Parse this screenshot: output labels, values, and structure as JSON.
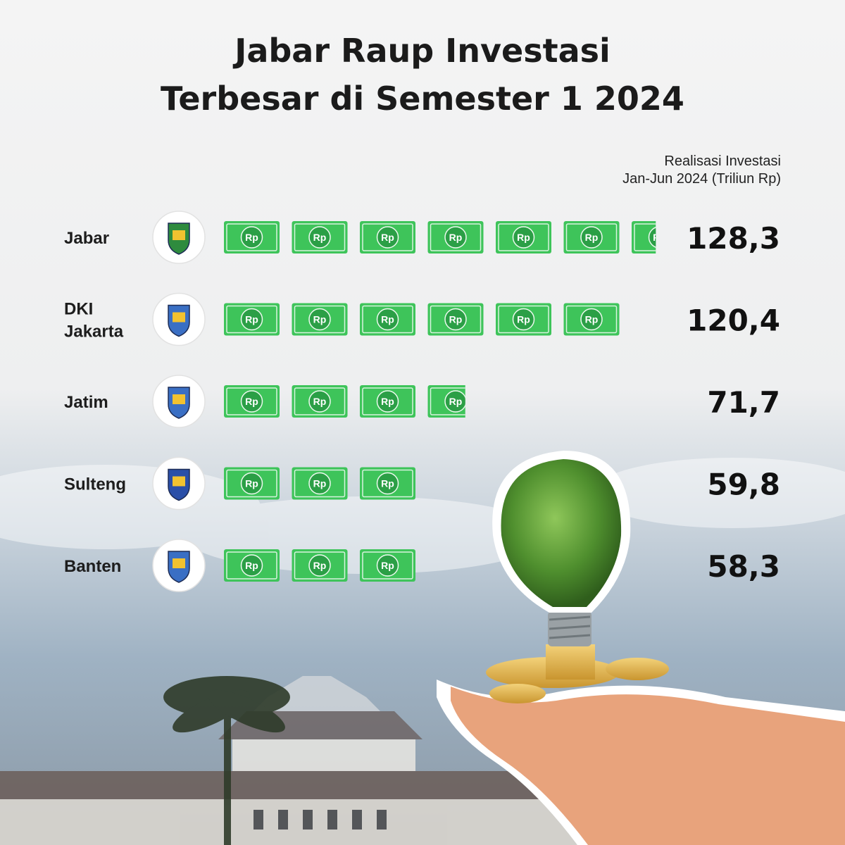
{
  "title": {
    "line1": "Jabar Raup Investasi",
    "line2": "Terbesar di Semester 1 2024"
  },
  "unit_label": {
    "line1": "Realisasi Investasi",
    "line2": "Jan-Jun 2024 (Triliun Rp)"
  },
  "money_icon_text": "Rp",
  "value_format": "comma decimal",
  "colors": {
    "bill_green": "#3ec45a",
    "bill_dark": "#2a9c44",
    "title_text": "#1b1b1b",
    "sky": "#9fb2c3"
  },
  "chart_data": {
    "type": "bar",
    "orientation": "horizontal",
    "title": "Jabar Raup Investasi Terbesar di Semester 1 2024",
    "unit": "Triliun Rp",
    "categories": [
      {
        "label_lines": [
          "Jabar"
        ],
        "value": 128.3,
        "value_label": "128,3",
        "emblem": "west-java-emblem"
      },
      {
        "label_lines": [
          "DKI",
          "Jakarta"
        ],
        "value": 120.4,
        "value_label": "120,4",
        "emblem": "jakarta-emblem"
      },
      {
        "label_lines": [
          "Jatim"
        ],
        "value": 71.7,
        "value_label": "71,7",
        "emblem": "east-java-emblem"
      },
      {
        "label_lines": [
          "Sulteng"
        ],
        "value": 59.8,
        "value_label": "59,8",
        "emblem": "central-sulawesi-emblem"
      },
      {
        "label_lines": [
          "Banten"
        ],
        "value": 58.3,
        "value_label": "58,3",
        "emblem": "banten-emblem"
      }
    ]
  }
}
